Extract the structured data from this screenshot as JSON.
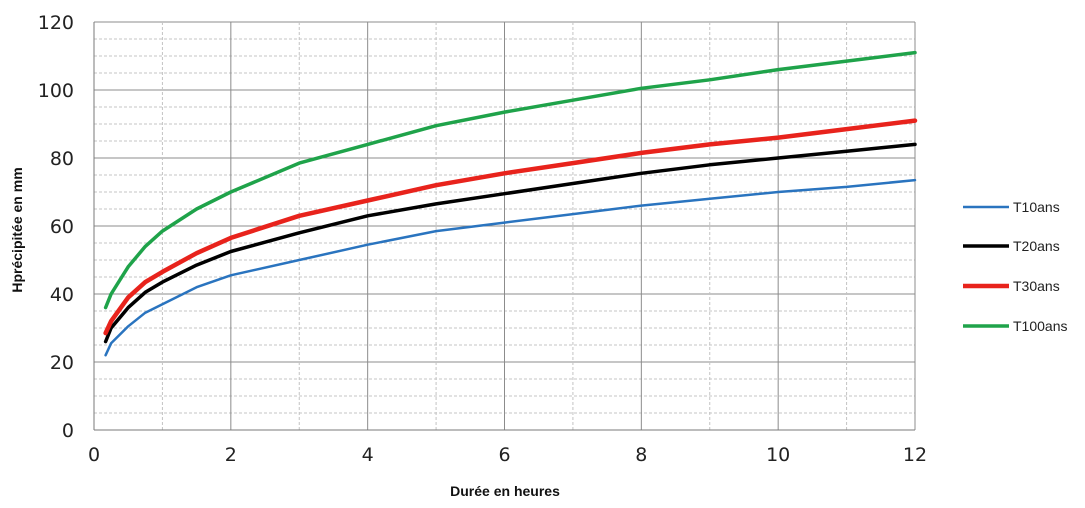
{
  "chart_data": {
    "type": "line",
    "xlabel": "Durée en heures",
    "ylabel": "Hprécipitée en mm",
    "xlim": [
      0,
      12
    ],
    "ylim": [
      0,
      120
    ],
    "x_ticks": [
      "0",
      "2",
      "4",
      "6",
      "8",
      "10",
      "12"
    ],
    "y_ticks": [
      "0",
      "20",
      "40",
      "60",
      "80",
      "100",
      "120"
    ],
    "grid": "major and minor",
    "legend_position": "right",
    "series": [
      {
        "name": "T10ans",
        "color": "#2a74bf",
        "x": [
          0.17,
          0.25,
          0.5,
          0.75,
          1,
          1.5,
          2,
          3,
          4,
          5,
          6,
          7,
          8,
          9,
          10,
          11,
          12
        ],
        "values": [
          22,
          25.5,
          30.5,
          34.5,
          37,
          42,
          45.5,
          50,
          54.5,
          58.5,
          61,
          63.5,
          66,
          68,
          70,
          71.5,
          73.5
        ]
      },
      {
        "name": "T20ans",
        "color": "#000000",
        "x": [
          0.17,
          0.25,
          0.5,
          0.75,
          1,
          1.5,
          2,
          3,
          4,
          5,
          6,
          7,
          8,
          9,
          10,
          11,
          12
        ],
        "values": [
          26,
          30,
          36,
          40.5,
          43.5,
          48.5,
          52.5,
          58,
          63,
          66.5,
          69.5,
          72.5,
          75.5,
          78,
          80,
          82,
          84
        ]
      },
      {
        "name": "T30ans",
        "color": "#e8231c",
        "x": [
          0.17,
          0.25,
          0.5,
          0.75,
          1,
          1.5,
          2,
          3,
          4,
          5,
          6,
          7,
          8,
          9,
          10,
          11,
          12
        ],
        "values": [
          28.5,
          32,
          39,
          43.5,
          46.5,
          52,
          56.5,
          63,
          67.5,
          72,
          75.5,
          78.5,
          81.5,
          84,
          86,
          88.5,
          91
        ]
      },
      {
        "name": "T100ans",
        "color": "#1fa34a",
        "x": [
          0.17,
          0.25,
          0.5,
          0.75,
          1,
          1.5,
          2,
          3,
          4,
          5,
          6,
          7,
          8,
          9,
          10,
          11,
          12
        ],
        "values": [
          36,
          40,
          48,
          54,
          58.5,
          65,
          70,
          78.5,
          84,
          89.5,
          93.5,
          97,
          100.5,
          103,
          106,
          108.5,
          111
        ]
      }
    ]
  }
}
